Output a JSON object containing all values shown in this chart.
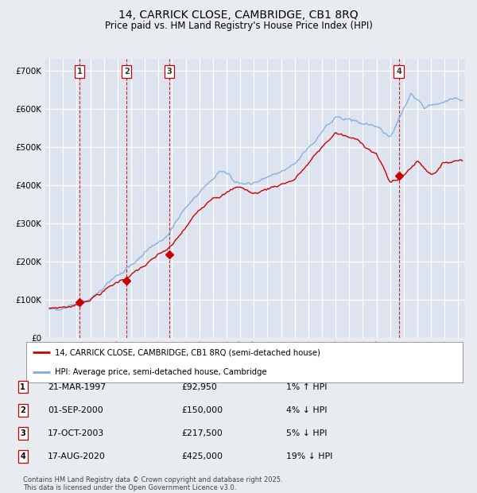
{
  "title": "14, CARRICK CLOSE, CAMBRIDGE, CB1 8RQ",
  "subtitle": "Price paid vs. HM Land Registry's House Price Index (HPI)",
  "title_fontsize": 10,
  "subtitle_fontsize": 9,
  "background_color": "#e8ecf0",
  "plot_bg_color": "#dde4ef",
  "grid_color": "#ffffff",
  "ylim": [
    0,
    730000
  ],
  "yticks": [
    0,
    100000,
    200000,
    300000,
    400000,
    500000,
    600000,
    700000
  ],
  "ytick_labels": [
    "£0",
    "£100K",
    "£200K",
    "£300K",
    "£400K",
    "£500K",
    "£600K",
    "£700K"
  ],
  "sales": [
    {
      "label": "1",
      "date": "21-MAR-1997",
      "price": 92950,
      "hpi_pct": "1% ↑ HPI",
      "x_year": 1997.22
    },
    {
      "label": "2",
      "date": "01-SEP-2000",
      "price": 150000,
      "hpi_pct": "4% ↓ HPI",
      "x_year": 2000.67
    },
    {
      "label": "3",
      "date": "17-OCT-2003",
      "price": 217500,
      "hpi_pct": "5% ↓ HPI",
      "x_year": 2003.79
    },
    {
      "label": "4",
      "date": "17-AUG-2020",
      "price": 425000,
      "hpi_pct": "19% ↓ HPI",
      "x_year": 2020.63
    }
  ],
  "legend_entries": [
    "14, CARRICK CLOSE, CAMBRIDGE, CB1 8RQ (semi-detached house)",
    "HPI: Average price, semi-detached house, Cambridge"
  ],
  "footer": "Contains HM Land Registry data © Crown copyright and database right 2025.\nThis data is licensed under the Open Government Licence v3.0.",
  "line_color_red": "#cc0000",
  "line_color_blue": "#7aaddb",
  "marker_color": "#cc0000",
  "vline_color": "#cc0000",
  "xlim_left": 1994.7,
  "xlim_right": 2025.5
}
